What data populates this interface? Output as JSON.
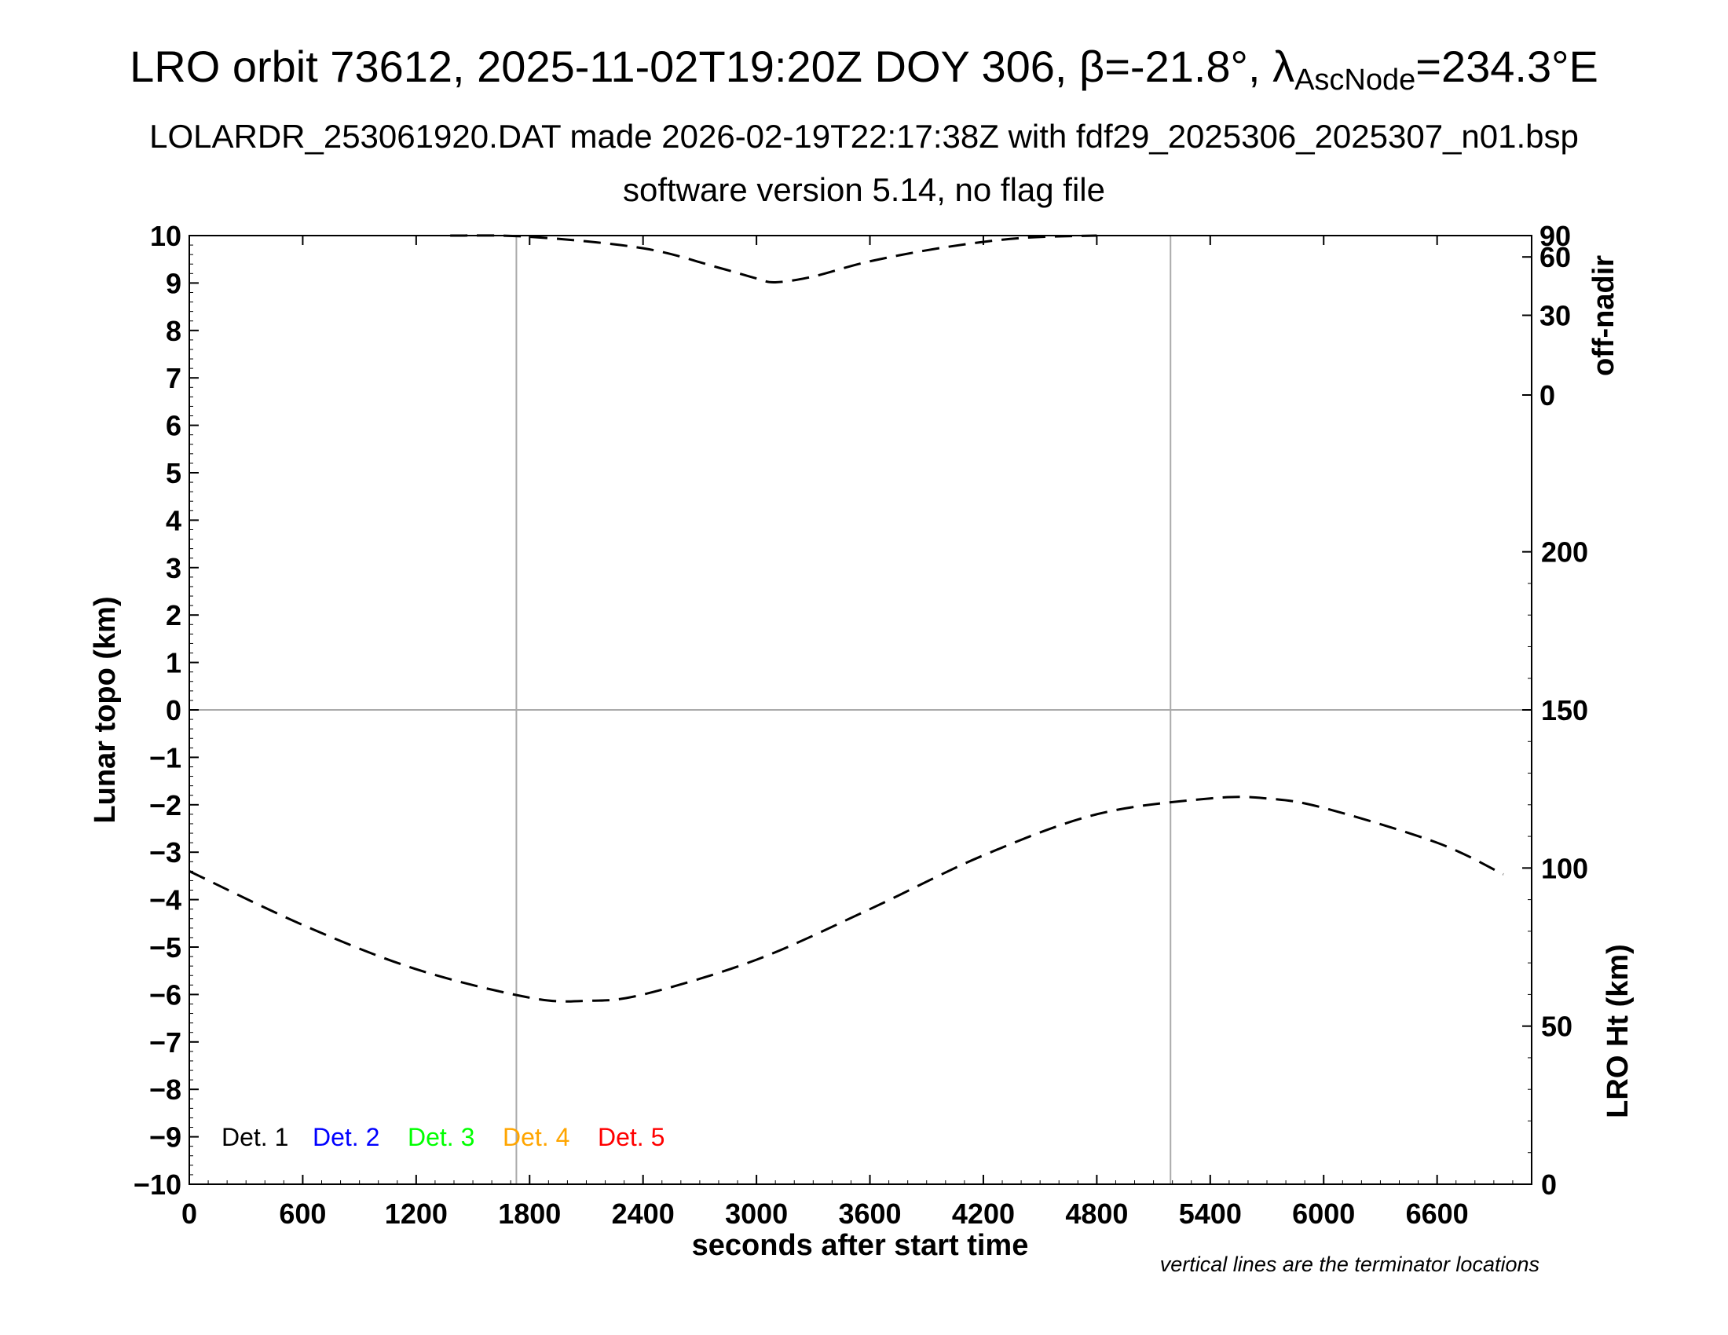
{
  "titles": {
    "line1_main": "LRO orbit 73612, 2025-11-02T19:20Z DOY 306, β=-21.8°, λ",
    "line1_sub": "AscNode",
    "line1_tail": "=234.3°E",
    "line2": "LOLARDR_253061920.DAT made 2026-02-19T22:17:38Z with fdf29_2025306_2025307_n01.bsp",
    "line3": "software version 5.14, no flag file"
  },
  "chart_data": {
    "type": "line",
    "xlabel": "seconds after start time",
    "ylabel_left": "Lunar topo (km)",
    "ylabel_right_top": "off-nadir",
    "ylabel_right_bottom": "LRO Ht (km)",
    "xlim": [
      0,
      7100
    ],
    "ylim_left": [
      -10,
      10
    ],
    "x_ticks": [
      0,
      600,
      1200,
      1800,
      2400,
      3000,
      3600,
      4200,
      4800,
      5400,
      6000,
      6600
    ],
    "y_ticks_left": [
      10,
      9,
      8,
      7,
      6,
      5,
      4,
      3,
      2,
      1,
      0,
      -1,
      -2,
      -3,
      -4,
      -5,
      -6,
      -7,
      -8,
      -9,
      -10
    ],
    "right_top_axis": {
      "label": "off-nadir",
      "ticks": [
        90,
        60,
        30,
        0
      ]
    },
    "right_bottom_axis": {
      "label": "LRO Ht (km)",
      "ticks": [
        200,
        150,
        100,
        50,
        0
      ],
      "range": [
        0,
        300
      ]
    },
    "terminator_x": [
      1730,
      5190
    ],
    "zero_line": 0,
    "legend": [
      {
        "label": "Det. 1",
        "color": "#000000"
      },
      {
        "label": "Det. 2",
        "color": "#0000ff"
      },
      {
        "label": "Det. 3",
        "color": "#00ff00"
      },
      {
        "label": "Det. 4",
        "color": "#ffa500"
      },
      {
        "label": "Det. 5",
        "color": "#ff0000"
      }
    ],
    "series": [
      {
        "name": "off-nadir",
        "style": "dashed",
        "axis": "right_top",
        "x": [
          1380,
          1800,
          2400,
          2800,
          3000,
          3100,
          3300,
          3600,
          4000,
          4400,
          4800
        ],
        "y": [
          90,
          83,
          67,
          53,
          47,
          45,
          48,
          57,
          68,
          80,
          90
        ]
      },
      {
        "name": "LRO Ht",
        "style": "dashed",
        "axis": "right_bottom",
        "x": [
          0,
          600,
          1200,
          1800,
          2100,
          2400,
          3000,
          3600,
          4200,
          4800,
          5400,
          5700,
          6000,
          6600,
          6950
        ],
        "y": [
          99,
          82,
          68,
          59,
          58,
          60,
          71,
          87,
          104,
          117,
          122,
          122,
          119,
          108,
          98
        ]
      }
    ],
    "footnote": "vertical lines are the terminator locations"
  }
}
